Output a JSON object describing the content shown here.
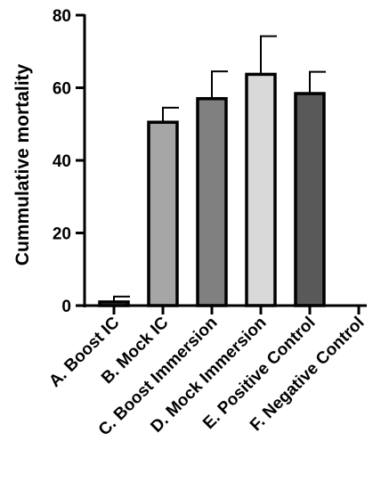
{
  "chart_data": {
    "type": "bar",
    "title": "",
    "xlabel": "",
    "ylabel": "Cummulative mortality",
    "ylim": [
      0,
      80
    ],
    "yticks": [
      0,
      20,
      40,
      60,
      80
    ],
    "grid": false,
    "categories": [
      "A. Boost IC",
      "B. Mock IC",
      "C. Boost Immersion",
      "D. Mock Immersion",
      "E. Positive Control",
      "F. Negative Control"
    ],
    "values": [
      1.0,
      50.5,
      57.0,
      63.7,
      58.4,
      0
    ],
    "error_upper": [
      1.5,
      4.0,
      7.5,
      10.5,
      6.0,
      0
    ],
    "bar_colors": [
      "#5a5a5a",
      "#a6a6a6",
      "#808080",
      "#d9d9d9",
      "#595959",
      "#ffffff"
    ],
    "edge_color": "#000000"
  }
}
